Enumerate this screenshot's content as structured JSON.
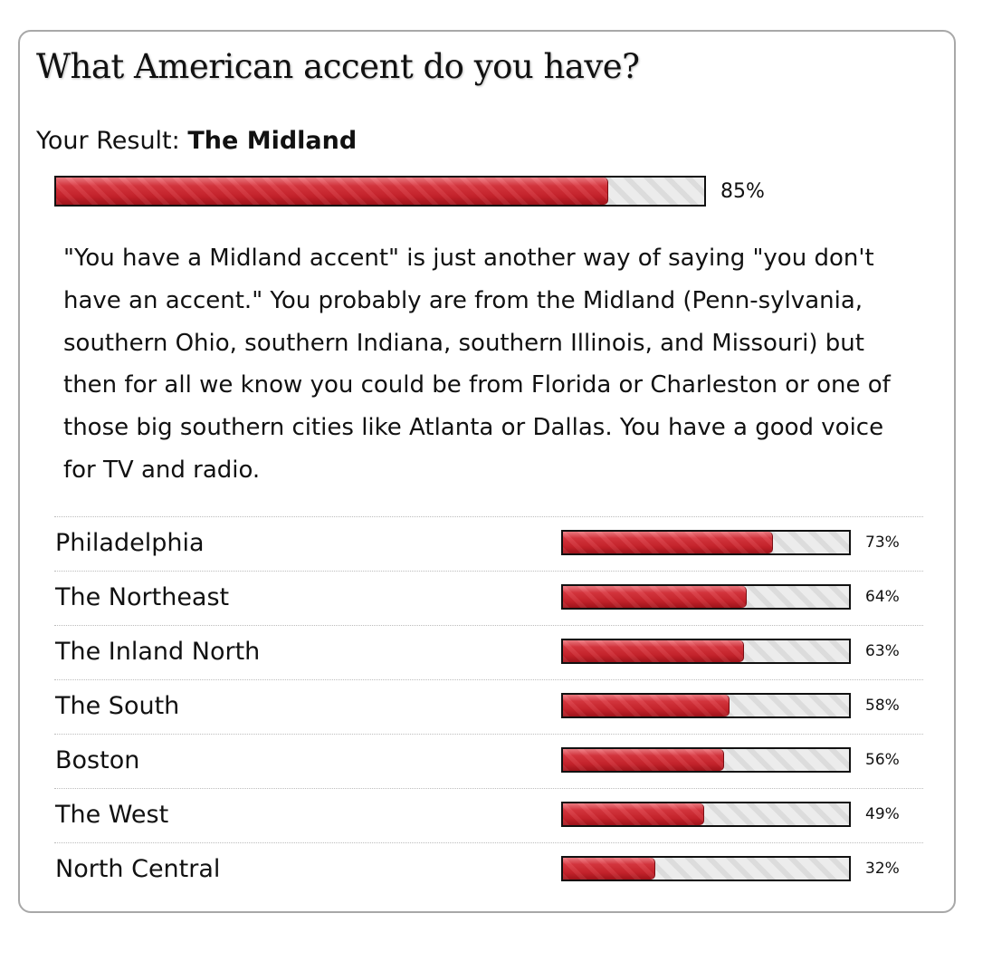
{
  "quiz": {
    "title": "What American accent do you have?",
    "result_prefix": "Your Result:",
    "result_name": "The Midland",
    "result_percent_label": "85%",
    "result_percent": 85,
    "description": "\"You have a Midland accent\" is just another way of saying \"you don't have an accent.\" You probably are from the Midland (Penn-sylvania, southern Ohio, southern Indiana, southern Illinois, and Missouri) but then for all we know you could be from Florida or Charleston or one of those big southern cities like Atlanta or Dallas. You have a good voice for TV and radio."
  },
  "other_results": [
    {
      "label": "Philadelphia",
      "percent_label": "73%",
      "percent": 73
    },
    {
      "label": "The Northeast",
      "percent_label": "64%",
      "percent": 64
    },
    {
      "label": "The Inland North",
      "percent_label": "63%",
      "percent": 63
    },
    {
      "label": "The South",
      "percent_label": "58%",
      "percent": 58
    },
    {
      "label": "Boston",
      "percent_label": "56%",
      "percent": 56
    },
    {
      "label": "The West",
      "percent_label": "49%",
      "percent": 49
    },
    {
      "label": "North Central",
      "percent_label": "32%",
      "percent": 32
    }
  ],
  "colors": {
    "bar_fill": "#c8222b",
    "bar_track": "#e6e6e6",
    "card_border": "#a8a8a8"
  }
}
